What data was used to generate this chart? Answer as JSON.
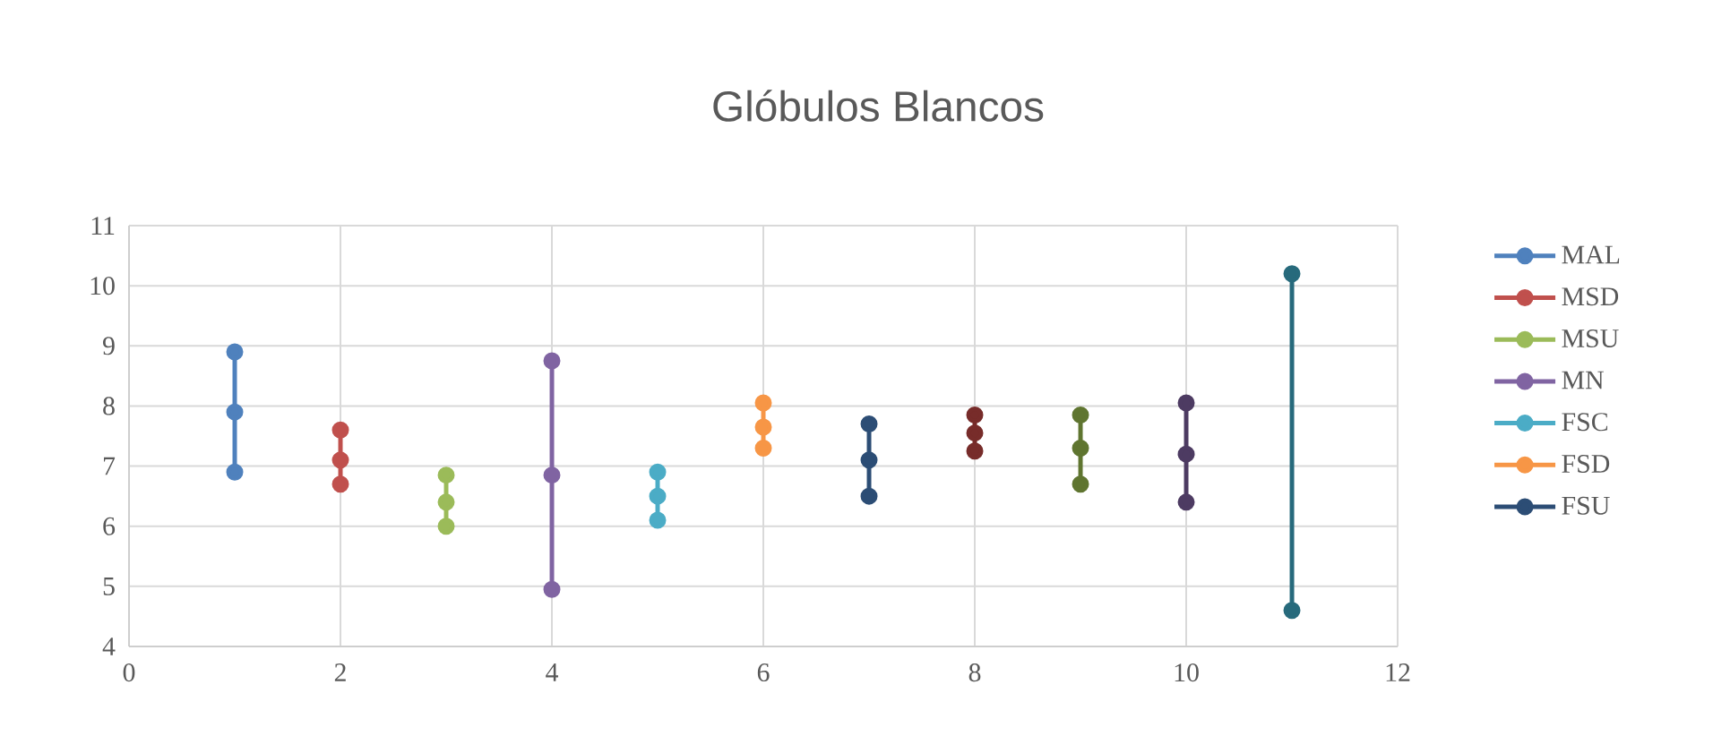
{
  "chart_data": {
    "type": "line",
    "title": "Glóbulos Blancos",
    "marker": "circle",
    "line_style": "solid",
    "grid": true,
    "legend": "right",
    "xlim": [
      0,
      12
    ],
    "xticks": [
      0,
      2,
      4,
      6,
      8,
      10,
      12
    ],
    "ylim": [
      4,
      11
    ],
    "yticks": [
      4,
      5,
      6,
      7,
      8,
      9,
      10,
      11
    ],
    "series": [
      {
        "name": "MAL",
        "color": "#4f81bd",
        "x": [
          1,
          1,
          1
        ],
        "values": [
          6.9,
          7.9,
          8.9
        ]
      },
      {
        "name": "MSD",
        "color": "#c0504d",
        "x": [
          2,
          2,
          2
        ],
        "values": [
          6.7,
          7.1,
          7.6
        ]
      },
      {
        "name": "MSU",
        "color": "#9bbb59",
        "x": [
          3,
          3,
          3
        ],
        "values": [
          6.0,
          6.4,
          6.85
        ]
      },
      {
        "name": "MN",
        "color": "#8064a2",
        "x": [
          4,
          4,
          4
        ],
        "values": [
          4.95,
          6.85,
          8.75
        ]
      },
      {
        "name": "FSC",
        "color": "#4bacc6",
        "x": [
          5,
          5,
          5
        ],
        "values": [
          6.1,
          6.5,
          6.9
        ]
      },
      {
        "name": "FSD",
        "color": "#f79646",
        "x": [
          6,
          6,
          6
        ],
        "values": [
          7.3,
          7.65,
          8.05
        ]
      },
      {
        "name": "FSU",
        "color": "#2c4d75",
        "x": [
          7,
          7,
          7
        ],
        "values": [
          6.5,
          7.1,
          7.7
        ]
      },
      {
        "color": "#772c2a",
        "x": [
          8,
          8,
          8
        ],
        "values": [
          7.25,
          7.55,
          7.85
        ]
      },
      {
        "color": "#5f7530",
        "x": [
          9,
          9,
          9
        ],
        "values": [
          6.7,
          7.3,
          7.85
        ]
      },
      {
        "color": "#4d3b62",
        "x": [
          10,
          10,
          10
        ],
        "values": [
          6.4,
          7.2,
          8.05
        ]
      },
      {
        "color": "#276a7c",
        "x": [
          11,
          11
        ],
        "values": [
          4.6,
          10.2
        ]
      }
    ]
  }
}
